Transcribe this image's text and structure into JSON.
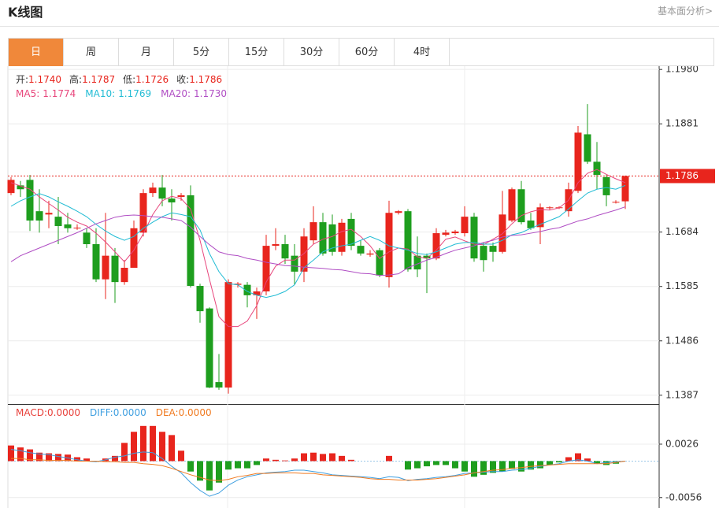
{
  "header": {
    "title": "K线图",
    "link": "基本面分析>"
  },
  "tabs": {
    "items": [
      "日",
      "周",
      "月",
      "5分",
      "15分",
      "30分",
      "60分",
      "4时"
    ],
    "active": 0,
    "active_color": "#f0883a"
  },
  "chart_data": [
    {
      "type": "candlestick",
      "up_color": "#e8251d",
      "down_color": "#1e9e1e",
      "grid": true,
      "ylim": [
        1.1371,
        1.1986
      ],
      "yticks": [
        1.1387,
        1.1486,
        1.1585,
        1.1684,
        1.1881,
        {
          "value": 1.198,
          "label": "1.1980"
        }
      ],
      "last_price": 1.1786,
      "ohlc_legend": {
        "value_color": "#e8251d",
        "items": [
          {
            "name": "开:",
            "value": "1.1740"
          },
          {
            "name": "高:",
            "value": "1.1787"
          },
          {
            "name": "低:",
            "value": "1.1726"
          },
          {
            "name": "收:",
            "value": "1.1786"
          }
        ]
      },
      "open": [
        1.1755,
        1.1769,
        1.1779,
        1.1722,
        1.1716,
        1.1712,
        1.1698,
        1.1691,
        1.1683,
        1.1662,
        1.1598,
        1.1641,
        1.1593,
        1.1619,
        1.1683,
        1.1755,
        1.1765,
        1.1745,
        1.1748,
        1.1751,
        1.1586,
        1.1545,
        1.1411,
        1.1401,
        1.1588,
        1.1588,
        1.1569,
        1.1576,
        1.1659,
        1.1662,
        1.1641,
        1.1612,
        1.1669,
        1.1702,
        1.1698,
        1.1648,
        1.1708,
        1.1659,
        1.1643,
        1.1651,
        1.1602,
        1.1719,
        1.1722,
        1.1641,
        1.1641,
        1.1636,
        1.1679,
        1.1682,
        1.1682,
        1.1712,
        1.1659,
        1.1659,
        1.1648,
        1.1705,
        1.1762,
        1.1705,
        1.1693,
        1.1728,
        1.1728,
        1.1722,
        1.1759,
        1.1862,
        1.1812,
        1.1784,
        1.1738,
        1.174
      ],
      "high": [
        1.1784,
        1.1777,
        1.1788,
        1.1762,
        1.1741,
        1.1748,
        1.1719,
        1.1698,
        1.1691,
        1.1691,
        1.1719,
        1.1655,
        1.1633,
        1.1705,
        1.1762,
        1.1774,
        1.1788,
        1.1762,
        1.1755,
        1.1769,
        1.159,
        1.1547,
        1.1462,
        1.1598,
        1.1593,
        1.1593,
        1.1583,
        1.1679,
        1.1691,
        1.1679,
        1.1662,
        1.1691,
        1.1731,
        1.1719,
        1.1716,
        1.1708,
        1.1719,
        1.1669,
        1.1651,
        1.1655,
        1.1741,
        1.1724,
        1.1726,
        1.1676,
        1.1645,
        1.1691,
        1.1688,
        1.1688,
        1.1731,
        1.1719,
        1.1665,
        1.1665,
        1.1759,
        1.1765,
        1.1777,
        1.1719,
        1.1736,
        1.1731,
        1.1731,
        1.1774,
        1.1877,
        1.1917,
        1.1848,
        1.1788,
        1.1742,
        1.1787
      ],
      "low": [
        1.1751,
        1.1748,
        1.1686,
        1.1683,
        1.1691,
        1.1662,
        1.1683,
        1.1688,
        1.1655,
        1.1593,
        1.1562,
        1.1555,
        1.1588,
        1.1619,
        1.1676,
        1.1748,
        1.1731,
        1.1705,
        1.1741,
        1.1583,
        1.1519,
        1.14,
        1.1397,
        1.139,
        1.1583,
        1.1547,
        1.1526,
        1.1569,
        1.1651,
        1.1626,
        1.1588,
        1.1593,
        1.1662,
        1.1641,
        1.1641,
        1.1641,
        1.1651,
        1.1641,
        1.1639,
        1.1602,
        1.1583,
        1.1716,
        1.1612,
        1.1602,
        1.1573,
        1.1633,
        1.1676,
        1.1679,
        1.1676,
        1.163,
        1.1612,
        1.163,
        1.1645,
        1.1702,
        1.1698,
        1.1688,
        1.1662,
        1.1725,
        1.1726,
        1.1712,
        1.1755,
        1.1808,
        1.1762,
        1.1731,
        1.1736,
        1.1726
      ],
      "close": [
        1.1779,
        1.1762,
        1.1705,
        1.1705,
        1.1719,
        1.1695,
        1.1691,
        1.1692,
        1.1662,
        1.1598,
        1.1641,
        1.1593,
        1.1619,
        1.1691,
        1.1755,
        1.1765,
        1.1745,
        1.1738,
        1.1751,
        1.1586,
        1.154,
        1.1401,
        1.1401,
        1.1593,
        1.159,
        1.1569,
        1.1576,
        1.1659,
        1.1662,
        1.1636,
        1.1612,
        1.1676,
        1.1702,
        1.1645,
        1.1648,
        1.1701,
        1.1659,
        1.1645,
        1.1645,
        1.1605,
        1.1719,
        1.1722,
        1.1616,
        1.1616,
        1.1636,
        1.1682,
        1.1683,
        1.1685,
        1.1712,
        1.1636,
        1.1633,
        1.1648,
        1.1716,
        1.1762,
        1.1702,
        1.1691,
        1.1729,
        1.1729,
        1.1729,
        1.1762,
        1.1865,
        1.1812,
        1.1788,
        1.1751,
        1.1739,
        1.1786
      ],
      "series": [
        {
          "name": "MA5:",
          "value_label": "1.1774",
          "color": "#e8467c",
          "values": [
            1.1774,
            1.1768,
            1.1762,
            1.1748,
            1.1736,
            1.1724,
            1.1711,
            1.1702,
            1.1695,
            1.1682,
            1.1666,
            1.1648,
            1.163,
            1.1651,
            1.1681,
            1.1716,
            1.1741,
            1.1749,
            1.1745,
            1.1726,
            1.1669,
            1.1598,
            1.153,
            1.1512,
            1.1512,
            1.1522,
            1.155,
            1.1593,
            1.1622,
            1.1633,
            1.1633,
            1.1645,
            1.1662,
            1.1671,
            1.1676,
            1.1685,
            1.1689,
            1.1676,
            1.1659,
            1.1636,
            1.1648,
            1.1655,
            1.1653,
            1.1639,
            1.1636,
            1.1651,
            1.1671,
            1.1675,
            1.1668,
            1.1662,
            1.1661,
            1.1671,
            1.1681,
            1.1699,
            1.1714,
            1.1721,
            1.1725,
            1.1724,
            1.1728,
            1.1742,
            1.1774,
            1.1791,
            1.1798,
            1.1789,
            1.1781,
            1.1774
          ]
        },
        {
          "name": "MA10:",
          "value_label": "1.1769",
          "color": "#22bcd4",
          "values": [
            1.1731,
            1.1741,
            1.1748,
            1.1754,
            1.1748,
            1.1739,
            1.1731,
            1.1722,
            1.1712,
            1.1698,
            1.1686,
            1.1676,
            1.1669,
            1.1676,
            1.1691,
            1.1702,
            1.1712,
            1.1719,
            1.1716,
            1.1712,
            1.1688,
            1.1645,
            1.1612,
            1.159,
            1.1588,
            1.1576,
            1.1569,
            1.1565,
            1.1569,
            1.1576,
            1.1588,
            1.1619,
            1.1633,
            1.1648,
            1.1655,
            1.1659,
            1.1662,
            1.1669,
            1.1676,
            1.1669,
            1.1659,
            1.1655,
            1.1651,
            1.1645,
            1.1643,
            1.1648,
            1.1655,
            1.1662,
            1.1665,
            1.1665,
            1.1662,
            1.1662,
            1.1669,
            1.1679,
            1.1683,
            1.1691,
            1.1698,
            1.1705,
            1.1712,
            1.1726,
            1.1741,
            1.1755,
            1.1762,
            1.1765,
            1.1762,
            1.1769
          ]
        },
        {
          "name": "MA20:",
          "value_label": "1.1730",
          "color": "#b04ec4",
          "values": [
            1.163,
            1.1641,
            1.1648,
            1.1655,
            1.1662,
            1.1669,
            1.1676,
            1.1683,
            1.1691,
            1.1699,
            1.1705,
            1.1711,
            1.1714,
            1.1715,
            1.1714,
            1.1712,
            1.1711,
            1.1708,
            1.1705,
            1.1693,
            1.1676,
            1.1661,
            1.1648,
            1.1643,
            1.1641,
            1.1636,
            1.1633,
            1.1629,
            1.1626,
            1.1623,
            1.1622,
            1.162,
            1.1619,
            1.1618,
            1.1616,
            1.1615,
            1.1612,
            1.1609,
            1.1608,
            1.1605,
            1.1606,
            1.1608,
            1.1619,
            1.1626,
            1.1633,
            1.1638,
            1.1645,
            1.1651,
            1.1655,
            1.1659,
            1.1665,
            1.1669,
            1.1675,
            1.1678,
            1.1679,
            1.1682,
            1.1685,
            1.1689,
            1.1692,
            1.1698,
            1.1704,
            1.1708,
            1.1714,
            1.1719,
            1.1724,
            1.173
          ]
        }
      ]
    },
    {
      "type": "macd",
      "up_color": "#e8251d",
      "down_color": "#1e9e1e",
      "grid": true,
      "ylim": [
        -0.0072,
        0.0084
      ],
      "yticks": [
        -0.0056,
        0.0026
      ],
      "series": [
        {
          "name": "MACD:",
          "value_label": "0.0000",
          "color": "#e8403a",
          "style": "bar",
          "values": [
            0.0024,
            0.0021,
            0.0018,
            0.0013,
            0.0012,
            0.0011,
            0.001,
            0.0006,
            0.0004,
            -0.0001,
            0.0004,
            0.0008,
            0.0028,
            0.0045,
            0.0054,
            0.0054,
            0.0045,
            0.004,
            0.0016,
            -0.0016,
            -0.003,
            -0.0045,
            -0.0033,
            -0.0013,
            -0.0011,
            -0.0011,
            -0.0006,
            0.0004,
            0.0002,
            0.0001,
            0.0004,
            0.0012,
            0.0013,
            0.0011,
            0.0012,
            0.0008,
            0.0002,
            0,
            0,
            0,
            0.0008,
            0,
            -0.0013,
            -0.0011,
            -0.0008,
            -0.0006,
            -0.0006,
            -0.0011,
            -0.0016,
            -0.0024,
            -0.0021,
            -0.0018,
            -0.0016,
            -0.0012,
            -0.0016,
            -0.0013,
            -0.0011,
            -0.0006,
            -0.0002,
            0.0006,
            0.0012,
            0.0004,
            -0.0004,
            -0.0006,
            -0.0004,
            0
          ]
        },
        {
          "name": "DIFF:",
          "value_label": "0.0000",
          "color": "#3f9fe0",
          "style": "line",
          "values": [
            0.0018,
            0.0016,
            0.0013,
            0.0011,
            0.001,
            0.0007,
            0.0005,
            0.0002,
            0,
            -0.0001,
            0.0002,
            0.0006,
            0.0008,
            0.0012,
            0.0014,
            0.0013,
            0.0004,
            -0.0008,
            -0.0018,
            -0.0033,
            -0.0045,
            -0.0054,
            -0.0049,
            -0.0037,
            -0.0029,
            -0.0024,
            -0.0021,
            -0.0018,
            -0.0017,
            -0.0016,
            -0.0014,
            -0.0014,
            -0.0016,
            -0.0018,
            -0.0021,
            -0.0022,
            -0.0023,
            -0.0024,
            -0.0025,
            -0.0027,
            -0.0024,
            -0.0025,
            -0.003,
            -0.0028,
            -0.0027,
            -0.0025,
            -0.0024,
            -0.0022,
            -0.0019,
            -0.0018,
            -0.0017,
            -0.0016,
            -0.0016,
            -0.0014,
            -0.0013,
            -0.0011,
            -0.0008,
            -0.0006,
            -0.0004,
            0,
            0.0002,
            0,
            -0.0004,
            -0.0002,
            -0.0001,
            0
          ]
        },
        {
          "name": "DEA:",
          "value_label": "0.0000",
          "color": "#f07a20",
          "style": "line",
          "values": [
            0.0004,
            0.0004,
            0.0002,
            0.0002,
            0.0001,
            0.0001,
            0.0001,
            0,
            0,
            0,
            -0.0001,
            -0.0001,
            -0.0002,
            -0.0002,
            -0.0004,
            -0.0005,
            -0.0007,
            -0.0011,
            -0.0016,
            -0.0021,
            -0.0025,
            -0.0029,
            -0.003,
            -0.0028,
            -0.0024,
            -0.0022,
            -0.0019,
            -0.0019,
            -0.0018,
            -0.0018,
            -0.0018,
            -0.0019,
            -0.0019,
            -0.0021,
            -0.0022,
            -0.0023,
            -0.0024,
            -0.0025,
            -0.0027,
            -0.0028,
            -0.0028,
            -0.0029,
            -0.0029,
            -0.0029,
            -0.0028,
            -0.0027,
            -0.0025,
            -0.0023,
            -0.0021,
            -0.0018,
            -0.0016,
            -0.0014,
            -0.0013,
            -0.0011,
            -0.001,
            -0.0008,
            -0.0007,
            -0.0006,
            -0.0005,
            -0.0004,
            -0.0004,
            -0.0004,
            -0.0004,
            -0.0004,
            -0.0002,
            0
          ]
        }
      ]
    }
  ]
}
